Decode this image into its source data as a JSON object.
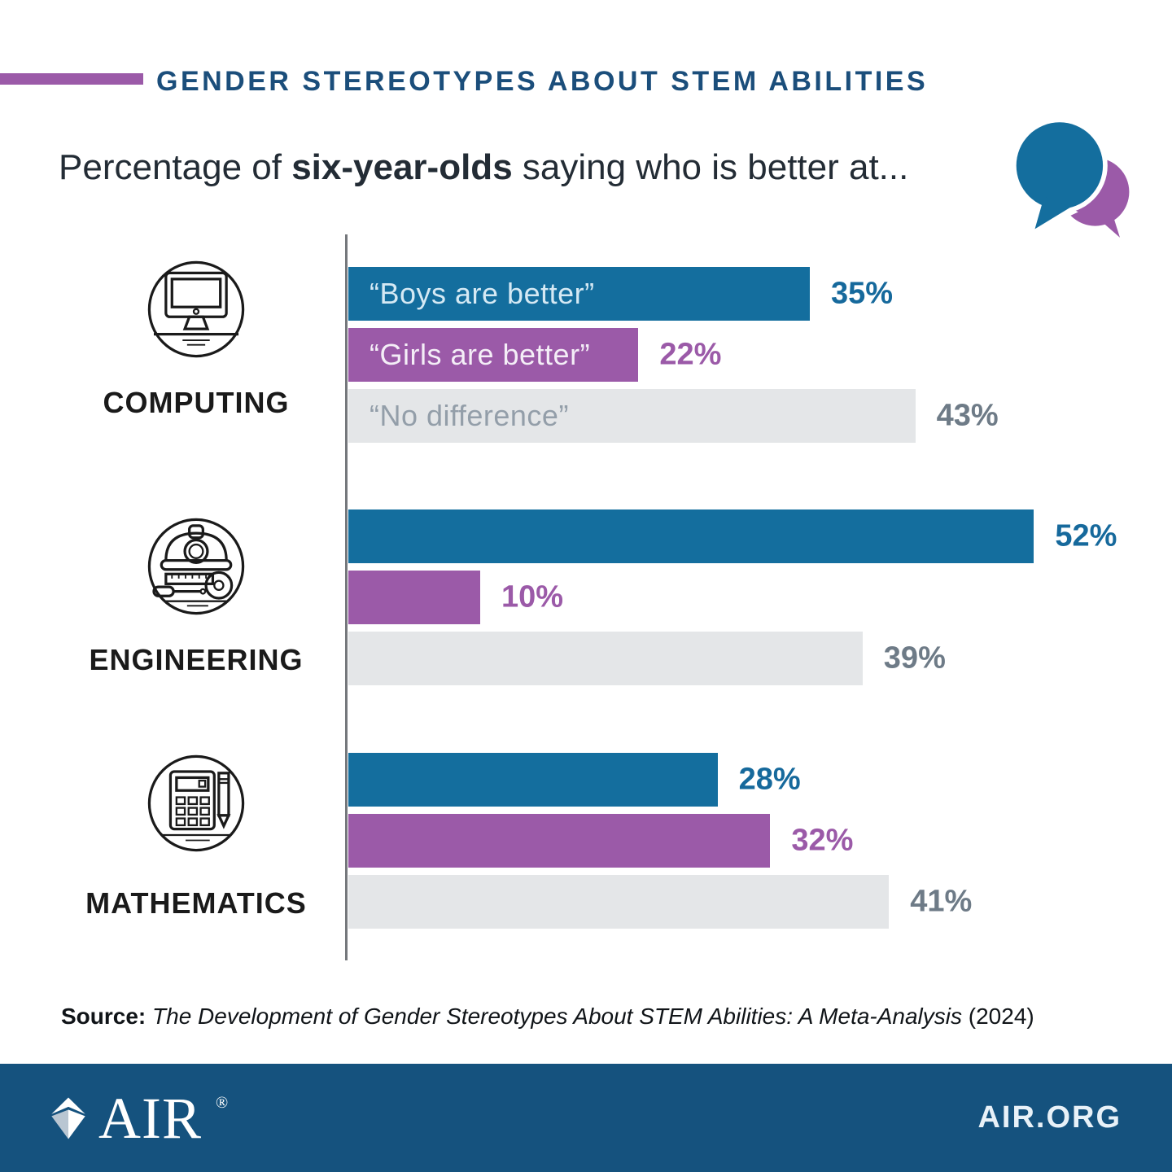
{
  "header": {
    "title": "GENDER STEREOTYPES ABOUT STEM ABILITIES"
  },
  "subtitle": {
    "prefix": "Percentage of ",
    "bold": "six-year-olds",
    "suffix": " saying who is better at..."
  },
  "chart_data": {
    "type": "bar",
    "orientation": "horizontal",
    "title": "Percentage of six-year-olds saying who is better at...",
    "unit": "%",
    "xlim": [
      0,
      55
    ],
    "grid": false,
    "legend_position": "labels-inside-first-group",
    "categories": [
      "COMPUTING",
      "ENGINEERING",
      "MATHEMATICS"
    ],
    "series": [
      {
        "key": "boys",
        "name": "Boys are better",
        "label": "“Boys are better”",
        "values": [
          35,
          52,
          28
        ],
        "color": "#146e9e",
        "label_color": "#d5e9f4",
        "value_color": "#16699c"
      },
      {
        "key": "girls",
        "name": "Girls are better",
        "label": "“Girls are better”",
        "values": [
          22,
          10,
          32
        ],
        "color": "#9b5aa8",
        "label_color": "#f4eef7",
        "value_color": "#9b5aa8"
      },
      {
        "key": "nodiff",
        "name": "No difference",
        "label": "“No difference”",
        "values": [
          43,
          39,
          41
        ],
        "color": "#e4e6e8",
        "label_color": "#939ea9",
        "value_color": "#6e7b87"
      }
    ]
  },
  "icons": {
    "computing": "desktop-computer-icon",
    "engineering": "hard-hat-tools-icon",
    "mathematics": "calculator-pencil-icon",
    "subtitle": "speech-bubbles-icon",
    "logo": "air-diamond-logo-icon"
  },
  "source": {
    "label": "Source:",
    "title": " The Development of Gender Stereotypes About STEM Abilities: A Meta-Analysis ",
    "year": "(2024)"
  },
  "footer": {
    "logo_text": "AIR",
    "registered": "®",
    "site": "AIR.ORG"
  },
  "colors": {
    "accent_purple": "#9b5aa8",
    "title_navy": "#1b4e7b",
    "bar_blue": "#146e9e",
    "bar_purple": "#9b5aa8",
    "bar_gray": "#e4e6e8",
    "axis_gray": "#75787c",
    "footer_blue": "#15527e"
  }
}
